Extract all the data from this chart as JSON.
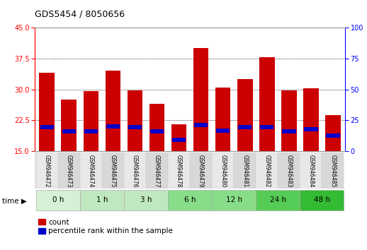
{
  "title": "GDS5454 / 8050656",
  "samples": [
    "GSM946472",
    "GSM946473",
    "GSM946474",
    "GSM946475",
    "GSM946476",
    "GSM946477",
    "GSM946478",
    "GSM946479",
    "GSM946480",
    "GSM946481",
    "GSM946482",
    "GSM946483",
    "GSM946484",
    "GSM946485"
  ],
  "count_values": [
    34.0,
    27.5,
    29.5,
    34.5,
    29.8,
    26.5,
    21.5,
    40.0,
    30.5,
    32.5,
    37.8,
    29.8,
    30.3,
    23.8
  ],
  "percentile_bottom": [
    20.3,
    19.3,
    19.3,
    20.5,
    20.3,
    19.3,
    17.3,
    20.8,
    19.5,
    20.3,
    20.3,
    19.3,
    19.8,
    18.3
  ],
  "percentile_height": [
    1.0,
    1.0,
    1.0,
    1.0,
    1.0,
    1.0,
    1.0,
    1.0,
    1.0,
    1.0,
    1.0,
    1.0,
    1.0,
    1.0
  ],
  "time_groups": [
    {
      "label": "0 h",
      "indices": [
        0,
        1
      ],
      "color": "#d5f0d5"
    },
    {
      "label": "1 h",
      "indices": [
        2,
        3
      ],
      "color": "#c0e8c0"
    },
    {
      "label": "3 h",
      "indices": [
        4,
        5
      ],
      "color": "#c0e8c0"
    },
    {
      "label": "6 h",
      "indices": [
        6,
        7
      ],
      "color": "#88dd88"
    },
    {
      "label": "12 h",
      "indices": [
        8,
        9
      ],
      "color": "#88dd88"
    },
    {
      "label": "24 h",
      "indices": [
        10,
        11
      ],
      "color": "#55cc55"
    },
    {
      "label": "48 h",
      "indices": [
        12,
        13
      ],
      "color": "#33bb33"
    }
  ],
  "ylim_left": [
    15,
    45
  ],
  "ylim_right": [
    0,
    100
  ],
  "yticks_left": [
    15,
    22.5,
    30,
    37.5,
    45
  ],
  "yticks_right": [
    0,
    25,
    50,
    75,
    100
  ],
  "bar_color": "#cc0000",
  "blue_color": "#0000cc",
  "bar_width": 0.7,
  "label_count": "count",
  "label_percentile": "percentile rank within the sample"
}
